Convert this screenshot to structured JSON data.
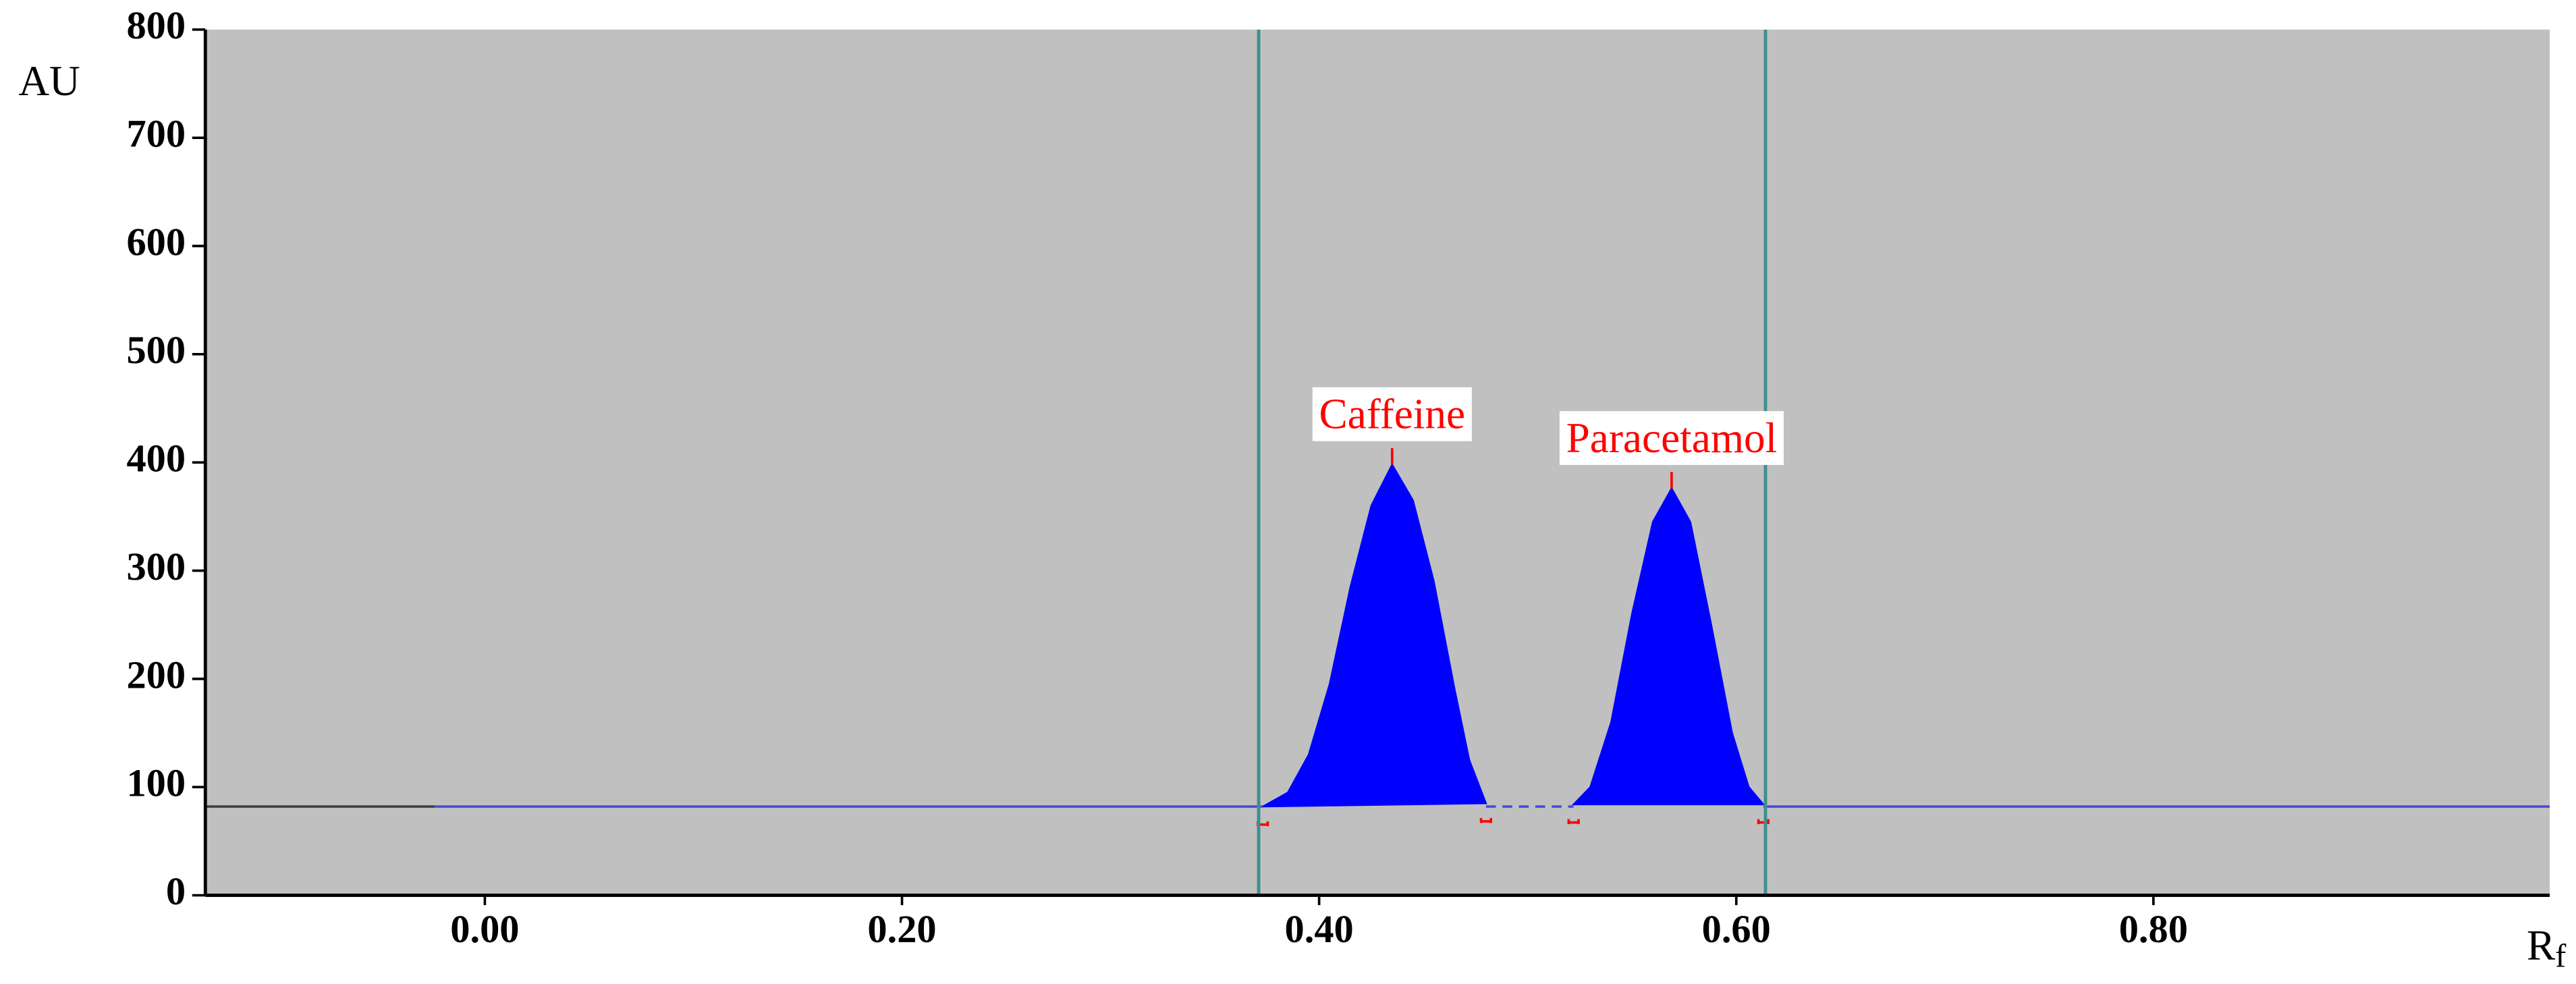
{
  "chart_data": {
    "type": "area",
    "ylabel": "AU",
    "xlabel": {
      "main": "R",
      "sub": "f"
    },
    "xlim": [
      -0.134,
      0.99
    ],
    "ylim": [
      0,
      800
    ],
    "yticks": [
      0,
      100,
      200,
      300,
      400,
      500,
      600,
      700,
      800
    ],
    "xticks": [
      {
        "value": 0,
        "label": "0.00"
      },
      {
        "value": 0.2,
        "label": "0.20"
      },
      {
        "value": 0.4,
        "label": "0.40"
      },
      {
        "value": 0.6,
        "label": "0.60"
      },
      {
        "value": 0.8,
        "label": "0.80"
      }
    ],
    "background": "#c0c0c0",
    "vlines": [
      0.371,
      0.614
    ],
    "vline_color": "#3f8f8f",
    "series": [
      {
        "color": "#404040",
        "fill": false,
        "x": [
          -0.134,
          -0.024
        ],
        "values": [
          82,
          82
        ]
      },
      {
        "color": "#4a4ae0",
        "fill": false,
        "x": [
          -0.024,
          0.373
        ],
        "values": [
          82,
          82
        ]
      },
      {
        "color": "#0000ff",
        "fill": true,
        "x": [
          0.373,
          0.385,
          0.395,
          0.405,
          0.415,
          0.425,
          0.435,
          0.445,
          0.455,
          0.465,
          0.472,
          0.48
        ],
        "values": [
          82,
          95,
          130,
          195,
          285,
          360,
          398,
          365,
          290,
          190,
          125,
          85
        ]
      },
      {
        "color": "#4a4ae0",
        "fill": false,
        "dash": true,
        "x": [
          0.48,
          0.522
        ],
        "values": [
          82,
          82
        ]
      },
      {
        "color": "#0000ff",
        "fill": true,
        "x": [
          0.522,
          0.53,
          0.54,
          0.55,
          0.56,
          0.569,
          0.578,
          0.588,
          0.598,
          0.606,
          0.613
        ],
        "values": [
          84,
          100,
          160,
          260,
          345,
          376,
          345,
          250,
          150,
          100,
          84
        ]
      },
      {
        "color": "#4a4ae0",
        "fill": false,
        "x": [
          0.613,
          0.99
        ],
        "values": [
          82,
          82
        ]
      }
    ],
    "annotations": [
      {
        "text": "Caffeine",
        "x": 0.435,
        "y": 398
      },
      {
        "text": "Paracetamol",
        "x": 0.569,
        "y": 376
      }
    ]
  }
}
